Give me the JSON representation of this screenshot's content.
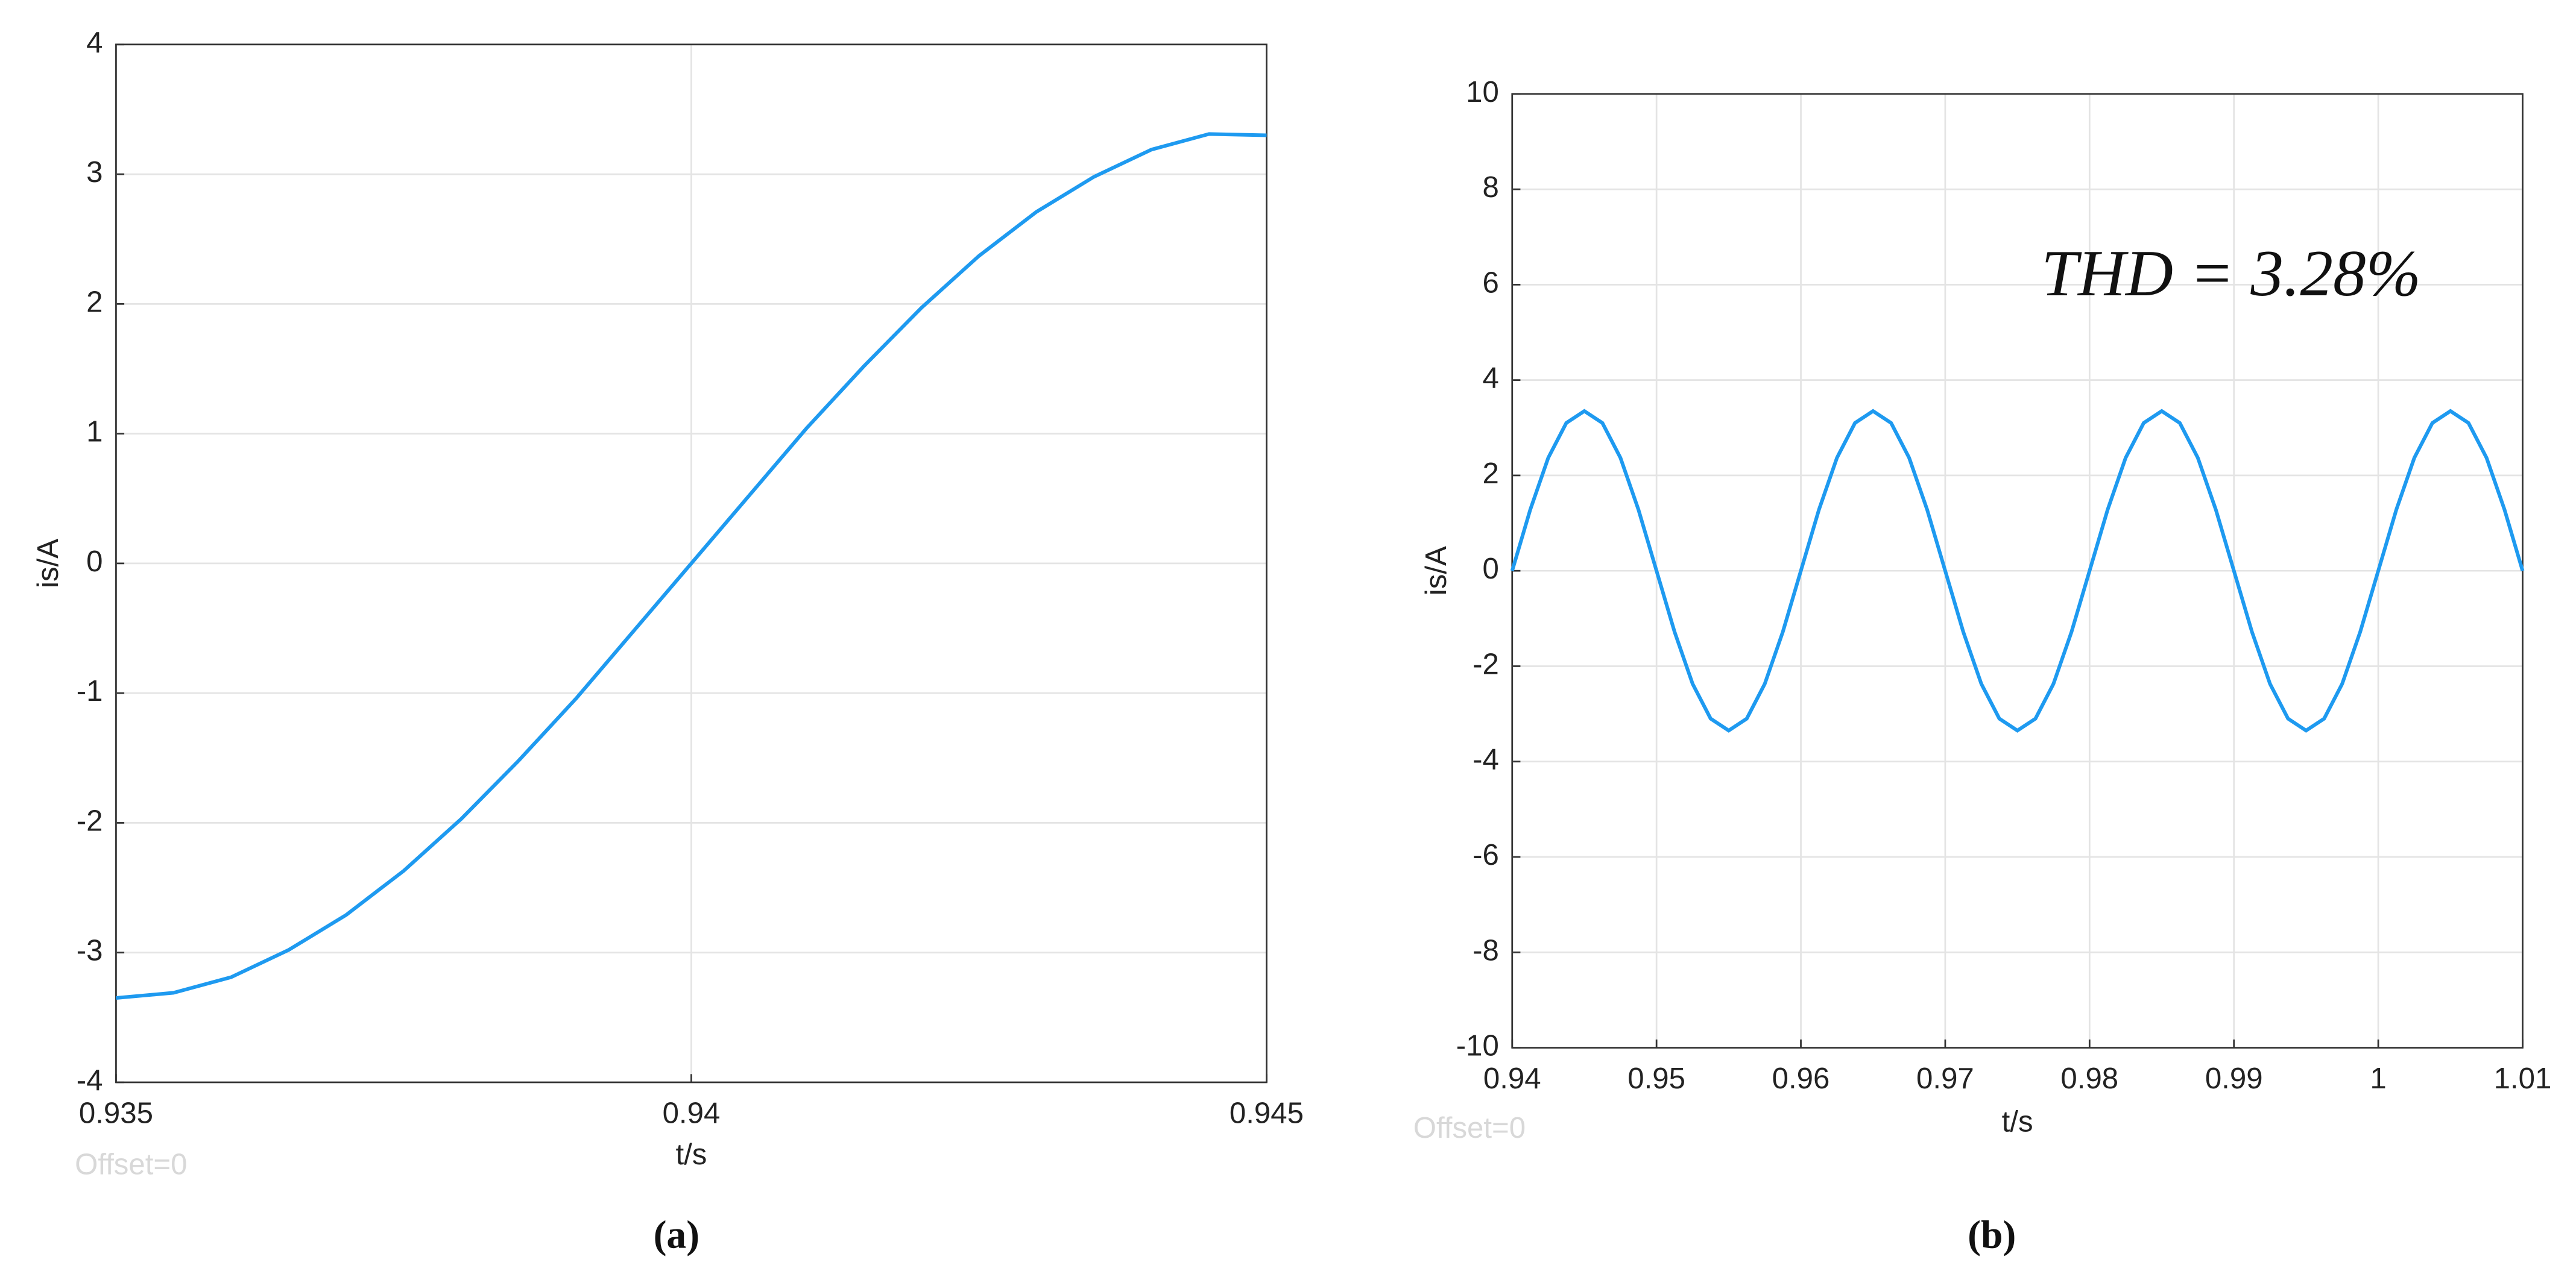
{
  "chart_data": [
    {
      "type": "line",
      "caption": "(a)",
      "xlabel": "t/s",
      "ylabel": "is/A",
      "note": "Offset=0",
      "color": "#1e9af0",
      "grid": true,
      "x": [
        0.935,
        0.9355,
        0.936,
        0.9365,
        0.937,
        0.9375,
        0.938,
        0.9385,
        0.939,
        0.9395,
        0.94,
        0.9405,
        0.941,
        0.9415,
        0.942,
        0.9425,
        0.943,
        0.9435,
        0.944,
        0.9445,
        0.945
      ],
      "values": [
        -3.35,
        -3.31,
        -3.19,
        -2.98,
        -2.71,
        -2.37,
        -1.97,
        -1.52,
        -1.04,
        -0.52,
        0,
        0.52,
        1.04,
        1.52,
        1.97,
        2.37,
        2.71,
        2.98,
        3.19,
        3.31,
        3.3
      ],
      "xlim": [
        0.935,
        0.945
      ],
      "xticks": [
        0.935,
        0.94,
        0.945
      ],
      "ylim": [
        -4,
        4
      ],
      "yticks": [
        -4,
        -3,
        -2,
        -1,
        0,
        1,
        2,
        3,
        4
      ]
    },
    {
      "type": "line",
      "caption": "(b)",
      "xlabel": "t/s",
      "ylabel": "is/A",
      "note": "Offset=0",
      "annotation": "THD = 3.28%",
      "color": "#1e9af0",
      "grid": true,
      "x": [
        0.94,
        0.94125,
        0.9425,
        0.94375,
        0.945,
        0.94625,
        0.9475,
        0.94875,
        0.95,
        0.95125,
        0.9525,
        0.95375,
        0.955,
        0.95625,
        0.9575,
        0.95875,
        0.96,
        0.96125,
        0.9625,
        0.96375,
        0.965,
        0.96625,
        0.9675,
        0.96875,
        0.97,
        0.97125,
        0.9725,
        0.97375,
        0.975,
        0.97625,
        0.9775,
        0.97875,
        0.98,
        0.98125,
        0.9825,
        0.98375,
        0.985,
        0.98625,
        0.9875,
        0.98875,
        0.99,
        0.99125,
        0.9925,
        0.99375,
        0.995,
        0.99625,
        0.9975,
        0.99875,
        1.0,
        1.00125,
        1.0025,
        1.00375,
        1.005,
        1.00625,
        1.0075,
        1.00875,
        1.01
      ],
      "values": [
        0,
        1.28,
        2.37,
        3.1,
        3.35,
        3.1,
        2.37,
        1.28,
        0,
        -1.28,
        -2.37,
        -3.1,
        -3.35,
        -3.1,
        -2.37,
        -1.28,
        0,
        1.28,
        2.37,
        3.1,
        3.35,
        3.1,
        2.37,
        1.28,
        0,
        -1.28,
        -2.37,
        -3.1,
        -3.35,
        -3.1,
        -2.37,
        -1.28,
        0,
        1.28,
        2.37,
        3.1,
        3.35,
        3.1,
        2.37,
        1.28,
        0,
        -1.28,
        -2.37,
        -3.1,
        -3.35,
        -3.1,
        -2.37,
        -1.28,
        0,
        1.28,
        2.37,
        3.1,
        3.35,
        3.1,
        2.37,
        1.28,
        0
      ],
      "xlim": [
        0.94,
        1.01
      ],
      "xticks": [
        0.94,
        0.95,
        0.96,
        0.97,
        0.98,
        0.99,
        1,
        1.01
      ],
      "ylim": [
        -10,
        10
      ],
      "yticks": [
        -10,
        -8,
        -6,
        -4,
        -2,
        0,
        2,
        4,
        6,
        8,
        10
      ]
    }
  ]
}
